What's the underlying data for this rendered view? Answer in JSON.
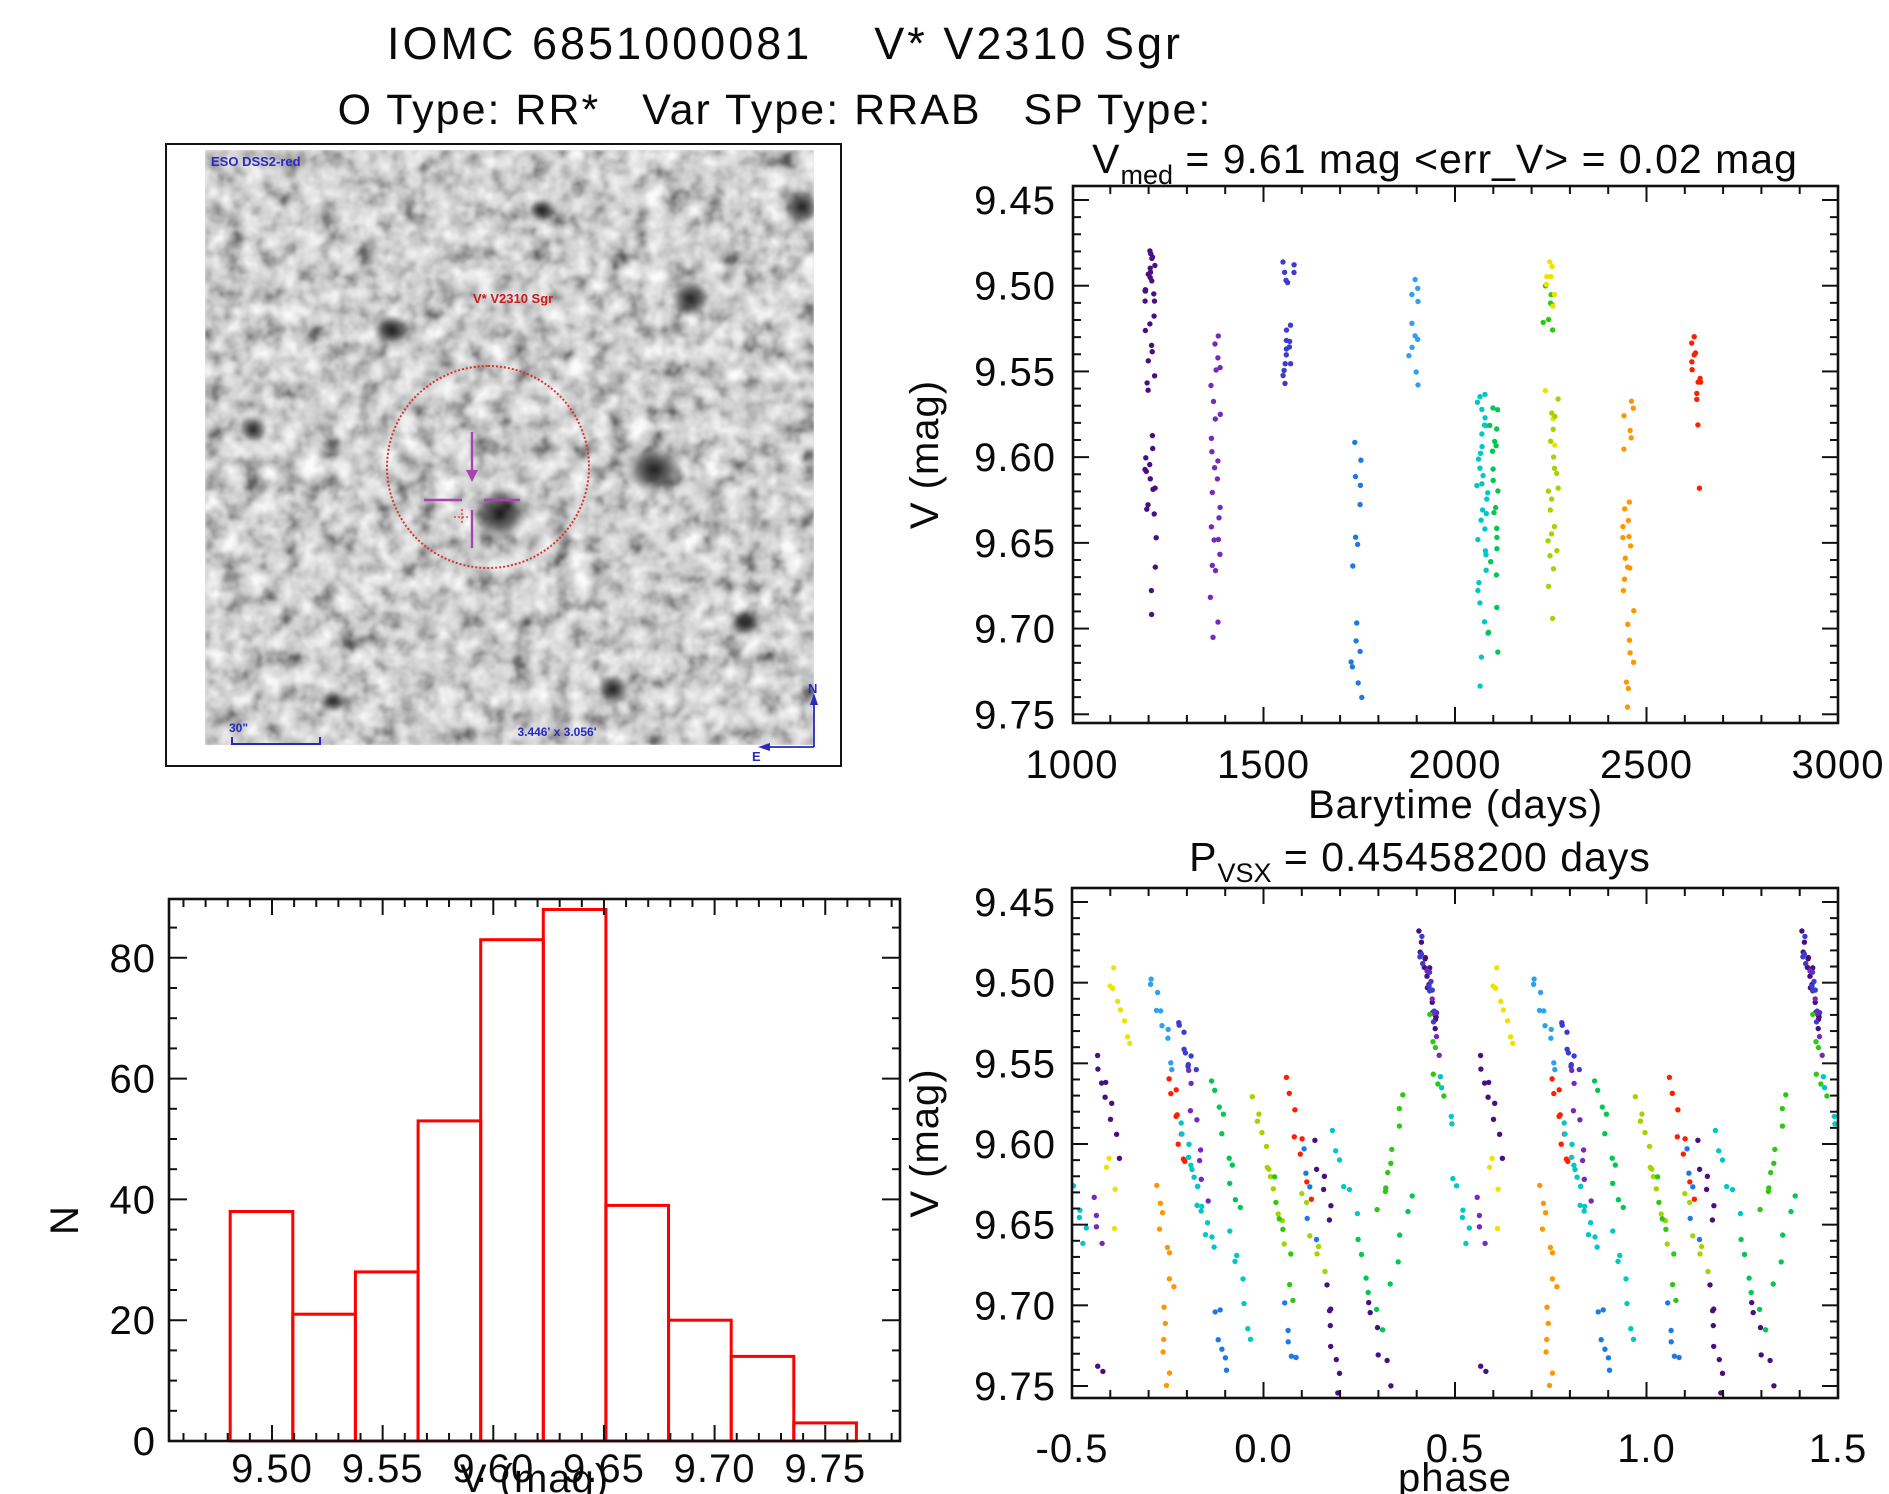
{
  "page": {
    "title_line1": "IOMC 6851000081    V* V2310 Sgr",
    "title_line2": "O Type: RR*   Var Type: RRAB   SP Type:"
  },
  "star_panel": {
    "survey_label": "ESO DSS2-red",
    "target_label": "V* V2310 Sgr",
    "scale_label": "30\"",
    "fov_label": "3.446' x 3.056'",
    "compass_n": "N",
    "compass_e": "E"
  },
  "colors": {
    "axis": "#111111",
    "histogram_red": "#ff0000",
    "annotation_blue": "#2929c0",
    "annotation_red": "#cb1b1b",
    "circle_red": "#d93030",
    "crosshair_purple": "#a943b2",
    "palette": {
      "violet": "#4b0e82",
      "purple": "#7728be",
      "indigo": "#3c3ccd",
      "blue": "#1e78e6",
      "skyblue": "#30a0f0",
      "cyan": "#00c8c8",
      "springgreen": "#00c850",
      "green": "#2ec814",
      "yellowgreen": "#a4d400",
      "yellow": "#f0e200",
      "orange": "#ff9600",
      "red": "#ff1e00"
    }
  },
  "chart_data": [
    {
      "type": "scatter",
      "name": "barytime_lightcurve",
      "title": {
        "main": "V",
        "sub": "med",
        "rest": " = 9.61 mag <err_V> = 0.02 mag"
      },
      "xlabel": "Barytime (days)",
      "ylabel": "V (mag)",
      "xlim": [
        997,
        3000
      ],
      "ylim": [
        9.442,
        9.757
      ],
      "xticks": [
        "1000",
        "1500",
        "2000",
        "2500",
        "3000"
      ],
      "yticks": [
        "9.45",
        "9.50",
        "9.55",
        "9.60",
        "9.65",
        "9.70",
        "9.75"
      ],
      "x_minor_step": 100,
      "y_minor_step": 0.01,
      "clusters": [
        {
          "t": 1205,
          "color": "violet",
          "segments": [
            [
              9.478,
              9.512,
              16
            ],
            [
              9.515,
              9.565,
              9
            ],
            [
              9.588,
              9.635,
              12
            ],
            [
              9.642,
              9.7,
              4
            ]
          ]
        },
        {
          "t": 1375,
          "color": "purple",
          "segments": [
            [
              9.528,
              9.552,
              5
            ],
            [
              9.556,
              9.632,
              11
            ],
            [
              9.634,
              9.668,
              7
            ],
            [
              9.678,
              9.712,
              3
            ]
          ]
        },
        {
          "t": 1565,
          "color": "indigo",
          "segments": [
            [
              9.486,
              9.5,
              6
            ],
            [
              9.522,
              9.558,
              12
            ]
          ]
        },
        {
          "t": 1742,
          "color": "blue",
          "segments": [
            [
              9.587,
              9.632,
              5
            ],
            [
              9.64,
              9.666,
              3
            ],
            [
              9.694,
              9.742,
              7
            ]
          ]
        },
        {
          "t": 1892,
          "color": "skyblue",
          "segments": [
            [
              9.492,
              9.512,
              4
            ],
            [
              9.518,
              9.558,
              7
            ]
          ]
        },
        {
          "t": 2072,
          "color": "cyan",
          "segments": [
            [
              9.562,
              9.588,
              8
            ],
            [
              9.592,
              9.658,
              16
            ],
            [
              9.662,
              9.706,
              6
            ],
            [
              9.712,
              9.742,
              2
            ]
          ]
        },
        {
          "t": 2098,
          "color": "springgreen",
          "segments": [
            [
              9.567,
              9.6,
              7
            ],
            [
              9.602,
              9.672,
              10
            ],
            [
              9.68,
              9.722,
              3
            ]
          ]
        },
        {
          "t": 2243,
          "color": "green",
          "segments": [
            [
              9.498,
              9.528,
              7
            ]
          ]
        },
        {
          "t": 2250,
          "color": "yellow",
          "segments": [
            [
              9.483,
              9.512,
              7
            ],
            [
              9.556,
              9.602,
              3
            ]
          ]
        },
        {
          "t": 2257,
          "color": "yellowgreen",
          "segments": [
            [
              9.562,
              9.602,
              6
            ],
            [
              9.604,
              9.666,
              12
            ],
            [
              9.67,
              9.7,
              2
            ]
          ]
        },
        {
          "t": 2452,
          "color": "orange",
          "segments": [
            [
              9.562,
              9.6,
              6
            ],
            [
              9.623,
              9.678,
              12
            ],
            [
              9.688,
              9.748,
              8
            ]
          ]
        },
        {
          "t": 2632,
          "color": "red",
          "segments": [
            [
              9.528,
              9.568,
              11
            ],
            [
              9.578,
              9.585,
              1
            ],
            [
              9.618,
              9.624,
              1
            ]
          ]
        }
      ]
    },
    {
      "type": "bar",
      "name": "v_histogram",
      "xlabel": "V (mag)",
      "ylabel": "N",
      "bin_start": 9.4811,
      "bin_width": 0.0283,
      "counts": [
        38,
        21,
        28,
        53,
        83,
        88,
        39,
        20,
        14,
        3
      ],
      "xlim": [
        9.453,
        9.785
      ],
      "ylim": [
        0,
        89.7
      ],
      "xticks": [
        "9.50",
        "9.55",
        "9.60",
        "9.65",
        "9.70",
        "9.75"
      ],
      "yticks": [
        "0",
        "20",
        "40",
        "60",
        "80"
      ],
      "x_minor_step": 0.01,
      "y_minor_step": 5
    },
    {
      "type": "scatter",
      "name": "phase_folded_lightcurve",
      "title": {
        "main": "P",
        "sub": "VSX",
        "rest": " = 0.45458200 days"
      },
      "xlabel": "phase",
      "ylabel": "V (mag)",
      "xlim": [
        -0.5,
        1.5
      ],
      "ylim": [
        9.442,
        9.757
      ],
      "xticks": [
        "-0.5",
        "0.0",
        "0.5",
        "1.0",
        "1.5"
      ],
      "yticks": [
        "9.45",
        "9.50",
        "9.55",
        "9.60",
        "9.65",
        "9.70",
        "9.75"
      ],
      "x_minor_step": 0.1,
      "y_minor_step": 0.01,
      "duplicate_offset": 1.0,
      "clusters": [
        {
          "phase": [
            -0.5,
            -0.46
          ],
          "mag": [
            9.615,
            9.665
          ],
          "n": 6,
          "color": "cyan"
        },
        {
          "phase": [
            -0.445,
            -0.42
          ],
          "mag": [
            9.63,
            9.66
          ],
          "n": 4,
          "color": "purple"
        },
        {
          "phase": [
            -0.4,
            -0.355
          ],
          "mag": [
            9.488,
            9.537
          ],
          "n": 8,
          "color": "yellow"
        },
        {
          "phase": [
            -0.415,
            -0.385
          ],
          "mag": [
            9.598,
            9.655
          ],
          "n": 4,
          "color": "yellow"
        },
        {
          "phase": [
            -0.44,
            -0.375
          ],
          "mag": [
            9.538,
            9.607
          ],
          "n": 9,
          "color": "violet"
        },
        {
          "phase": [
            -0.435,
            -0.42
          ],
          "mag": [
            9.728,
            9.753
          ],
          "n": 2,
          "color": "violet"
        },
        {
          "phase": [
            -0.3,
            -0.235
          ],
          "mag": [
            9.49,
            9.556
          ],
          "n": 10,
          "color": "skyblue"
        },
        {
          "phase": [
            -0.23,
            -0.18
          ],
          "mag": [
            9.524,
            9.562
          ],
          "n": 9,
          "color": "indigo"
        },
        {
          "phase": [
            -0.24,
            -0.205
          ],
          "mag": [
            9.556,
            9.615
          ],
          "n": 9,
          "color": "red"
        },
        {
          "phase": [
            -0.2,
            -0.15
          ],
          "mag": [
            9.55,
            9.636
          ],
          "n": 8,
          "color": "purple"
        },
        {
          "phase": [
            -0.285,
            -0.24
          ],
          "mag": [
            9.623,
            9.696
          ],
          "n": 8,
          "color": "orange"
        },
        {
          "phase": [
            -0.27,
            -0.248
          ],
          "mag": [
            9.7,
            9.754
          ],
          "n": 6,
          "color": "orange"
        },
        {
          "phase": [
            -0.215,
            -0.13
          ],
          "mag": [
            9.585,
            9.67
          ],
          "n": 16,
          "color": "cyan"
        },
        {
          "phase": [
            -0.135,
            -0.065
          ],
          "mag": [
            9.555,
            9.645
          ],
          "n": 10,
          "color": "springgreen"
        },
        {
          "phase": [
            -0.09,
            -0.03
          ],
          "mag": [
            9.653,
            9.724
          ],
          "n": 7,
          "color": "cyan"
        },
        {
          "phase": [
            -0.13,
            -0.09
          ],
          "mag": [
            9.695,
            9.746
          ],
          "n": 6,
          "color": "blue"
        },
        {
          "phase": [
            -0.03,
            0.06
          ],
          "mag": [
            9.565,
            9.66
          ],
          "n": 12,
          "color": "yellowgreen"
        },
        {
          "phase": [
            0.02,
            0.09
          ],
          "mag": [
            9.615,
            9.7
          ],
          "n": 7,
          "color": "green"
        },
        {
          "phase": [
            0.05,
            0.09
          ],
          "mag": [
            9.7,
            9.737
          ],
          "n": 5,
          "color": "blue"
        },
        {
          "phase": [
            0.065,
            0.12
          ],
          "mag": [
            9.555,
            9.635
          ],
          "n": 8,
          "color": "red"
        },
        {
          "phase": [
            0.095,
            0.135
          ],
          "mag": [
            9.6,
            9.66
          ],
          "n": 5,
          "color": "blue"
        },
        {
          "phase": [
            0.135,
            0.185
          ],
          "mag": [
            9.598,
            9.647
          ],
          "n": 6,
          "color": "violet"
        },
        {
          "phase": [
            0.1,
            0.16
          ],
          "mag": [
            9.625,
            9.69
          ],
          "n": 6,
          "color": "yellowgreen"
        },
        {
          "phase": [
            0.155,
            0.205
          ],
          "mag": [
            9.685,
            9.754
          ],
          "n": 8,
          "color": "violet"
        },
        {
          "phase": [
            0.17,
            0.25
          ],
          "mag": [
            9.585,
            9.647
          ],
          "n": 6,
          "color": "cyan"
        },
        {
          "phase": [
            0.24,
            0.31
          ],
          "mag": [
            9.655,
            9.716
          ],
          "n": 6,
          "color": "springgreen"
        },
        {
          "phase": [
            0.27,
            0.33
          ],
          "mag": [
            9.69,
            9.75
          ],
          "n": 6,
          "color": "violet"
        },
        {
          "phase": [
            0.3,
            0.37
          ],
          "mag": [
            9.645,
            9.568
          ],
          "n": 9,
          "color": "green"
        },
        {
          "phase": [
            0.33,
            0.39
          ],
          "mag": [
            9.7,
            9.624
          ],
          "n": 5,
          "color": "springgreen"
        },
        {
          "phase": [
            0.405,
            0.455
          ],
          "mag": [
            9.468,
            9.53
          ],
          "n": 16,
          "color": "violet"
        },
        {
          "phase": [
            0.41,
            0.45
          ],
          "mag": [
            9.475,
            9.525
          ],
          "n": 12,
          "color": "indigo"
        },
        {
          "phase": [
            0.42,
            0.465
          ],
          "mag": [
            9.49,
            9.545
          ],
          "n": 5,
          "color": "purple"
        },
        {
          "phase": [
            0.425,
            0.468
          ],
          "mag": [
            9.52,
            9.576
          ],
          "n": 6,
          "color": "green"
        },
        {
          "phase": [
            0.46,
            0.495
          ],
          "mag": [
            9.553,
            9.592
          ],
          "n": 4,
          "color": "cyan"
        }
      ]
    }
  ]
}
